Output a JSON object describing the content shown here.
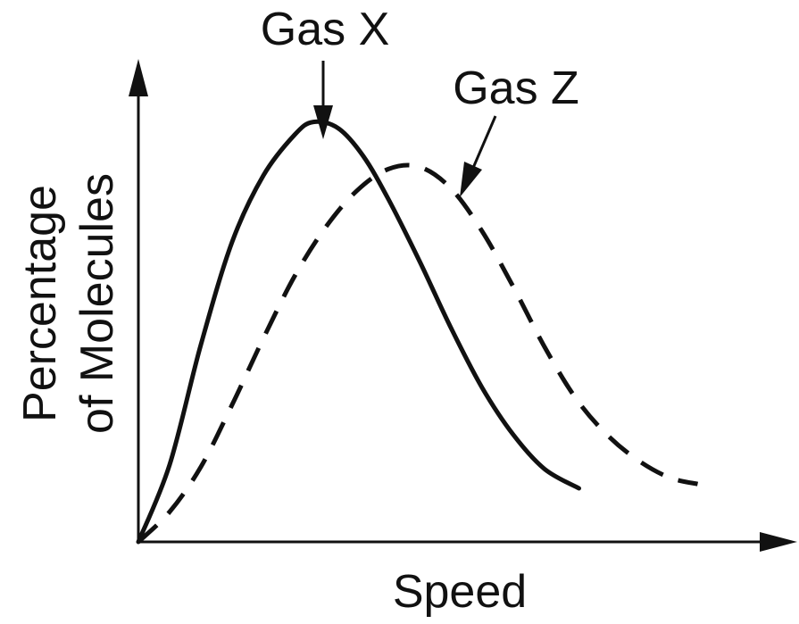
{
  "chart_data": {
    "type": "line",
    "title": "",
    "xlabel": "Speed",
    "ylabel_lines": [
      "Percentage",
      "of Molecules"
    ],
    "xlim": [
      0,
      10
    ],
    "ylim": [
      0,
      10
    ],
    "grid": false,
    "ticks": false,
    "series": [
      {
        "name": "Gas X",
        "style": "solid",
        "x": [
          0,
          0.5,
          1.0,
          1.5,
          2.0,
          2.5,
          2.8,
          3.2,
          3.6,
          4.0,
          4.5,
          5.0,
          5.5,
          6.0,
          6.5,
          7.05
        ],
        "y": [
          0,
          1.8,
          4.6,
          7.0,
          8.55,
          9.5,
          9.8,
          9.65,
          9.0,
          8.0,
          6.55,
          5.0,
          3.6,
          2.5,
          1.7,
          1.25
        ]
      },
      {
        "name": "Gas Z",
        "style": "dashed",
        "x": [
          0,
          0.5,
          1.0,
          1.5,
          2.0,
          2.5,
          3.0,
          3.5,
          4.0,
          4.5,
          5.0,
          5.5,
          6.0,
          6.5,
          7.0,
          7.5,
          8.0,
          8.5,
          8.95
        ],
        "y": [
          0,
          0.7,
          1.75,
          3.2,
          4.75,
          6.2,
          7.35,
          8.2,
          8.7,
          8.75,
          8.25,
          7.25,
          5.95,
          4.55,
          3.35,
          2.5,
          1.9,
          1.5,
          1.35
        ]
      }
    ]
  }
}
